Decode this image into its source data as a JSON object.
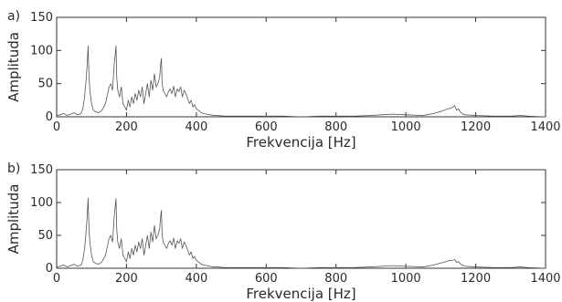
{
  "chart_data": [
    {
      "type": "line",
      "panel_label": "a)",
      "xlabel": "Frekvencija [Hz]",
      "ylabel": "Amplituda",
      "xlim": [
        0,
        1400
      ],
      "ylim": [
        0,
        150
      ],
      "xticks": [
        "0",
        "200",
        "400",
        "600",
        "800",
        "1000",
        "1200",
        "1400"
      ],
      "yticks": [
        "0",
        "50",
        "100",
        "150"
      ],
      "grid": false,
      "line_color": "#555555",
      "series": [
        {
          "x": [
            0,
            10,
            20,
            30,
            40,
            50,
            60,
            70,
            75,
            80,
            85,
            88,
            90,
            92,
            95,
            100,
            105,
            110,
            120,
            130,
            140,
            150,
            155,
            160,
            165,
            168,
            170,
            172,
            175,
            180,
            185,
            190,
            195,
            200,
            205,
            210,
            215,
            220,
            225,
            230,
            235,
            240,
            245,
            250,
            255,
            260,
            265,
            270,
            275,
            280,
            285,
            290,
            295,
            298,
            300,
            302,
            305,
            310,
            315,
            320,
            325,
            330,
            335,
            340,
            345,
            350,
            355,
            360,
            365,
            370,
            375,
            380,
            385,
            390,
            395,
            400,
            405,
            410,
            415,
            420,
            430,
            440,
            450,
            460,
            480,
            500,
            550,
            600,
            650,
            700,
            750,
            800,
            850,
            900,
            930,
            960,
            1000,
            1050,
            1080,
            1100,
            1110,
            1120,
            1130,
            1140,
            1145,
            1150,
            1160,
            1170,
            1200,
            1250,
            1300,
            1330,
            1350,
            1400
          ],
          "y": [
            2,
            3,
            5,
            2,
            4,
            6,
            3,
            5,
            12,
            30,
            60,
            85,
            107,
            70,
            40,
            20,
            10,
            8,
            6,
            10,
            20,
            45,
            50,
            40,
            80,
            95,
            107,
            60,
            40,
            30,
            45,
            20,
            15,
            10,
            25,
            15,
            30,
            20,
            35,
            25,
            40,
            30,
            45,
            20,
            35,
            50,
            30,
            55,
            40,
            65,
            45,
            50,
            60,
            80,
            88,
            50,
            40,
            35,
            30,
            38,
            42,
            35,
            46,
            30,
            42,
            38,
            45,
            30,
            40,
            35,
            28,
            20,
            25,
            15,
            18,
            12,
            10,
            8,
            6,
            5,
            4,
            3,
            2,
            2,
            1,
            1,
            1,
            1,
            1,
            0,
            1,
            1,
            1,
            2,
            3,
            4,
            3,
            2,
            5,
            8,
            10,
            12,
            13,
            17,
            10,
            12,
            5,
            3,
            2,
            1,
            1,
            2,
            1,
            0
          ]
        }
      ]
    },
    {
      "type": "line",
      "panel_label": "b)",
      "xlabel": "Frekvencija [Hz]",
      "ylabel": "Amplituda",
      "xlim": [
        0,
        1400
      ],
      "ylim": [
        0,
        150
      ],
      "xticks": [
        "0",
        "200",
        "400",
        "600",
        "800",
        "1000",
        "1200",
        "1400"
      ],
      "yticks": [
        "0",
        "50",
        "100",
        "150"
      ],
      "grid": false,
      "line_color": "#555555",
      "series": [
        {
          "x": [
            0,
            10,
            20,
            30,
            40,
            50,
            60,
            70,
            75,
            80,
            85,
            88,
            90,
            92,
            95,
            100,
            105,
            110,
            120,
            130,
            140,
            150,
            155,
            160,
            165,
            168,
            170,
            172,
            175,
            180,
            185,
            190,
            195,
            200,
            205,
            210,
            215,
            220,
            225,
            230,
            235,
            240,
            245,
            250,
            255,
            260,
            265,
            270,
            275,
            280,
            285,
            290,
            295,
            298,
            300,
            302,
            305,
            310,
            315,
            320,
            325,
            330,
            335,
            340,
            345,
            350,
            355,
            360,
            365,
            370,
            375,
            380,
            385,
            390,
            395,
            400,
            405,
            410,
            415,
            420,
            430,
            440,
            450,
            460,
            480,
            500,
            550,
            600,
            650,
            700,
            750,
            800,
            850,
            900,
            930,
            960,
            1000,
            1050,
            1080,
            1100,
            1110,
            1120,
            1130,
            1140,
            1145,
            1150,
            1160,
            1170,
            1200,
            1250,
            1300,
            1330,
            1350,
            1400
          ],
          "y": [
            2,
            3,
            5,
            2,
            4,
            6,
            3,
            5,
            12,
            30,
            60,
            85,
            107,
            70,
            40,
            20,
            10,
            8,
            6,
            10,
            20,
            45,
            50,
            40,
            80,
            95,
            106,
            60,
            40,
            30,
            45,
            20,
            15,
            10,
            25,
            15,
            30,
            20,
            35,
            25,
            40,
            30,
            45,
            20,
            35,
            50,
            30,
            55,
            40,
            65,
            45,
            50,
            60,
            80,
            88,
            50,
            40,
            35,
            30,
            38,
            42,
            35,
            46,
            30,
            42,
            38,
            45,
            30,
            40,
            35,
            28,
            20,
            25,
            15,
            18,
            12,
            10,
            8,
            6,
            5,
            4,
            3,
            2,
            2,
            1,
            1,
            1,
            1,
            1,
            0,
            1,
            1,
            1,
            2,
            3,
            4,
            3,
            2,
            5,
            8,
            9,
            11,
            12,
            13,
            9,
            10,
            5,
            3,
            2,
            1,
            1,
            2,
            1,
            0
          ]
        }
      ]
    }
  ]
}
